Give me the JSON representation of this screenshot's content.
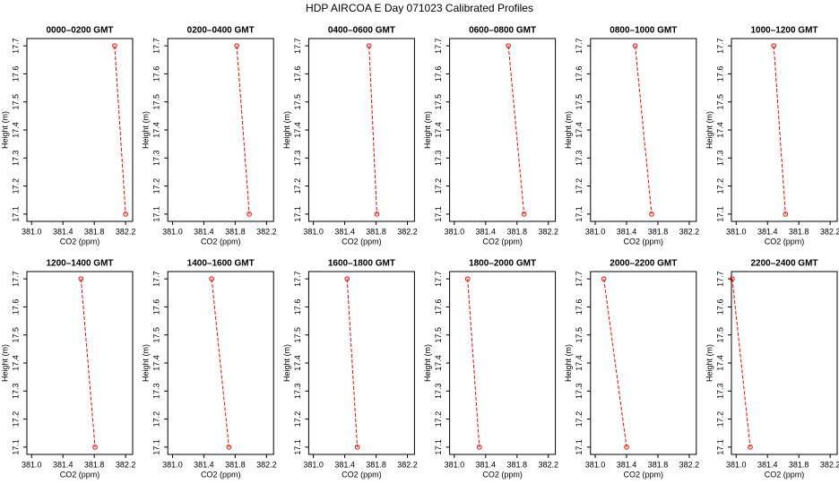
{
  "title": "HDP AIRCOA E  Day 071023  Calibrated Profiles",
  "chart_data": [
    {
      "type": "line",
      "title": "0000–0200 GMT",
      "x_label": "CO2 (ppm)",
      "y_label": "Height (m)",
      "color": "#ff0000",
      "x": [
        382.06,
        382.2
      ],
      "values": [
        17.7,
        17.1
      ],
      "xlim": [
        380.94,
        382.29
      ],
      "ylim": [
        17.074,
        17.726
      ],
      "xticks": [
        {
          "value": 381,
          "label": "381.0"
        },
        381.4,
        381.8,
        382.2
      ],
      "yticks": [
        17.1,
        17.2,
        17.3,
        17.4,
        17.5,
        17.6,
        17.7
      ]
    },
    {
      "type": "line",
      "title": "0200–0400 GMT",
      "x_label": "CO2 (ppm)",
      "y_label": "Height (m)",
      "color": "#ff0000",
      "x": [
        381.82,
        381.98
      ],
      "values": [
        17.7,
        17.1
      ],
      "xlim": [
        380.94,
        382.29
      ],
      "ylim": [
        17.074,
        17.726
      ],
      "xticks": [
        {
          "value": 381,
          "label": "381.0"
        },
        381.4,
        381.8,
        382.2
      ],
      "yticks": [
        17.1,
        17.2,
        17.3,
        17.4,
        17.5,
        17.6,
        17.7
      ]
    },
    {
      "type": "line",
      "title": "0400–0600 GMT",
      "x_label": "CO2 (ppm)",
      "y_label": "Height (m)",
      "color": "#ff0000",
      "x": [
        381.71,
        381.81
      ],
      "values": [
        17.7,
        17.1
      ],
      "xlim": [
        380.94,
        382.29
      ],
      "ylim": [
        17.074,
        17.726
      ],
      "xticks": [
        {
          "value": 381,
          "label": "381.0"
        },
        381.4,
        381.8,
        382.2
      ],
      "yticks": [
        17.1,
        17.2,
        17.3,
        17.4,
        17.5,
        17.6,
        17.7
      ]
    },
    {
      "type": "line",
      "title": "0600–0800 GMT",
      "x_label": "CO2 (ppm)",
      "y_label": "Height (m)",
      "color": "#ff0000",
      "x": [
        381.69,
        381.89
      ],
      "values": [
        17.7,
        17.1
      ],
      "xlim": [
        380.94,
        382.29
      ],
      "ylim": [
        17.074,
        17.726
      ],
      "xticks": [
        {
          "value": 381,
          "label": "381.0"
        },
        381.4,
        381.8,
        382.2
      ],
      "yticks": [
        17.1,
        17.2,
        17.3,
        17.4,
        17.5,
        17.6,
        17.7
      ]
    },
    {
      "type": "line",
      "title": "0800–1000 GMT",
      "x_label": "CO2 (ppm)",
      "y_label": "Height (m)",
      "color": "#ff0000",
      "x": [
        381.51,
        381.72
      ],
      "values": [
        17.7,
        17.1
      ],
      "xlim": [
        380.94,
        382.29
      ],
      "ylim": [
        17.074,
        17.726
      ],
      "xticks": [
        {
          "value": 381,
          "label": "381.0"
        },
        381.4,
        381.8,
        382.2
      ],
      "yticks": [
        17.1,
        17.2,
        17.3,
        17.4,
        17.5,
        17.6,
        17.7
      ]
    },
    {
      "type": "line",
      "title": "1000–1200 GMT",
      "x_label": "CO2 (ppm)",
      "y_label": "Height (m)",
      "color": "#ff0000",
      "x": [
        381.48,
        381.63
      ],
      "values": [
        17.7,
        17.1
      ],
      "xlim": [
        380.94,
        382.29
      ],
      "ylim": [
        17.074,
        17.726
      ],
      "xticks": [
        {
          "value": 381,
          "label": "381.0"
        },
        381.4,
        381.8,
        382.2
      ],
      "yticks": [
        17.1,
        17.2,
        17.3,
        17.4,
        17.5,
        17.6,
        17.7
      ]
    },
    {
      "type": "line",
      "title": "1200–1400 GMT",
      "x_label": "CO2 (ppm)",
      "y_label": "Height (m)",
      "color": "#ff0000",
      "x": [
        381.63,
        381.81
      ],
      "values": [
        17.7,
        17.1
      ],
      "xlim": [
        380.94,
        382.29
      ],
      "ylim": [
        17.074,
        17.726
      ],
      "xticks": [
        {
          "value": 381,
          "label": "381.0"
        },
        381.4,
        381.8,
        382.2
      ],
      "yticks": [
        17.1,
        17.2,
        17.3,
        17.4,
        17.5,
        17.6,
        17.7
      ]
    },
    {
      "type": "line",
      "title": "1400–1600 GMT",
      "x_label": "CO2 (ppm)",
      "y_label": "Height (m)",
      "color": "#ff0000",
      "x": [
        381.5,
        381.72
      ],
      "values": [
        17.7,
        17.1
      ],
      "xlim": [
        380.94,
        382.29
      ],
      "ylim": [
        17.074,
        17.726
      ],
      "xticks": [
        {
          "value": 381,
          "label": "381.0"
        },
        381.4,
        381.8,
        382.2
      ],
      "yticks": [
        17.1,
        17.2,
        17.3,
        17.4,
        17.5,
        17.6,
        17.7
      ]
    },
    {
      "type": "line",
      "title": "1600–1800 GMT",
      "x_label": "CO2 (ppm)",
      "y_label": "Height (m)",
      "color": "#ff0000",
      "x": [
        381.43,
        381.56
      ],
      "values": [
        17.7,
        17.1
      ],
      "xlim": [
        380.94,
        382.29
      ],
      "ylim": [
        17.074,
        17.726
      ],
      "xticks": [
        {
          "value": 381,
          "label": "381.0"
        },
        381.4,
        381.8,
        382.2
      ],
      "yticks": [
        17.1,
        17.2,
        17.3,
        17.4,
        17.5,
        17.6,
        17.7
      ]
    },
    {
      "type": "line",
      "title": "1800–2000 GMT",
      "x_label": "CO2 (ppm)",
      "y_label": "Height (m)",
      "color": "#ff0000",
      "x": [
        381.17,
        381.32
      ],
      "values": [
        17.7,
        17.1
      ],
      "xlim": [
        380.94,
        382.29
      ],
      "ylim": [
        17.074,
        17.726
      ],
      "xticks": [
        {
          "value": 381,
          "label": "381.0"
        },
        381.4,
        381.8,
        382.2
      ],
      "yticks": [
        17.1,
        17.2,
        17.3,
        17.4,
        17.5,
        17.6,
        17.7
      ]
    },
    {
      "type": "line",
      "title": "2000–2200 GMT",
      "x_label": "CO2 (ppm)",
      "y_label": "Height (m)",
      "color": "#ff0000",
      "x": [
        381.11,
        381.4
      ],
      "values": [
        17.7,
        17.1
      ],
      "xlim": [
        380.94,
        382.29
      ],
      "ylim": [
        17.074,
        17.726
      ],
      "xticks": [
        {
          "value": 381,
          "label": "381.0"
        },
        381.4,
        381.8,
        382.2
      ],
      "yticks": [
        17.1,
        17.2,
        17.3,
        17.4,
        17.5,
        17.6,
        17.7
      ]
    },
    {
      "type": "line",
      "title": "2200–2400 GMT",
      "x_label": "CO2 (ppm)",
      "y_label": "Height (m)",
      "color": "#ff0000",
      "x": [
        380.95,
        381.18
      ],
      "values": [
        17.7,
        17.1
      ],
      "xlim": [
        380.94,
        382.29
      ],
      "ylim": [
        17.074,
        17.726
      ],
      "xticks": [
        {
          "value": 381,
          "label": "381.0"
        },
        381.4,
        381.8,
        382.2
      ],
      "yticks": [
        17.1,
        17.2,
        17.3,
        17.4,
        17.5,
        17.6,
        17.7
      ]
    }
  ]
}
